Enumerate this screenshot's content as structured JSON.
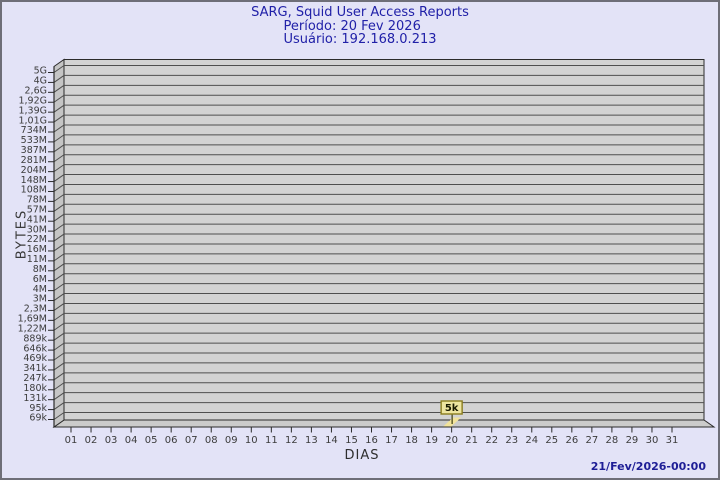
{
  "header": {
    "title": "SARG, Squid User Access Reports",
    "period": "Período: 20 Fev 2026",
    "user": "Usuário: 192.168.0.213"
  },
  "footer": {
    "timestamp": "21/Fev/2026-00:00"
  },
  "chart_data": {
    "type": "bar",
    "style": "3d-horizontal-grid",
    "title": "SARG, Squid User Access Reports",
    "subtitle": "Período: 20 Fev 2026",
    "user": "Usuário: 192.168.0.213",
    "xlabel": "DIAS",
    "ylabel": "BYTES",
    "y_scale": "logarithmic-like",
    "ylim": [
      "69k",
      "5G"
    ],
    "grid": "horizontal",
    "legend": "none",
    "y_axis_ticks": [
      "5G",
      "4G",
      "2,6G",
      "1,92G",
      "1,39G",
      "1,01G",
      "734M",
      "533M",
      "387M",
      "281M",
      "204M",
      "148M",
      "108M",
      "78M",
      "57M",
      "41M",
      "30M",
      "22M",
      "16M",
      "11M",
      "8M",
      "6M",
      "4M",
      "3M",
      "2,3M",
      "1,69M",
      "1,22M",
      "889k",
      "646k",
      "469k",
      "341k",
      "247k",
      "180k",
      "131k",
      "95k",
      "69k"
    ],
    "categories": [
      "01",
      "02",
      "03",
      "04",
      "05",
      "06",
      "07",
      "08",
      "09",
      "10",
      "11",
      "12",
      "13",
      "14",
      "15",
      "16",
      "17",
      "18",
      "19",
      "20",
      "21",
      "22",
      "23",
      "24",
      "25",
      "26",
      "27",
      "28",
      "29",
      "30",
      "31"
    ],
    "points": [
      {
        "day": "20",
        "label": "5k",
        "value_bytes_estimate": 5000
      }
    ],
    "colors": {
      "background": "#E3E3F7",
      "plot_face": "#D3D3D3",
      "plot_wall": "#C5C5C5",
      "plot_floor": "#CBCBCB",
      "gridline": "#4F4F4F",
      "axis": "#2B2B2B",
      "tick_text": "#3C3C3C",
      "title_text": "#2121A8",
      "timestamp_text": "#1E1E96",
      "bar_fill": "#F2E39B",
      "bar_pointer": "#4A4A1E",
      "bar_label_bg": "#EEE5A0",
      "bar_label_border": "#8A7D1E",
      "bar_label_text": "#1A1A00"
    }
  }
}
